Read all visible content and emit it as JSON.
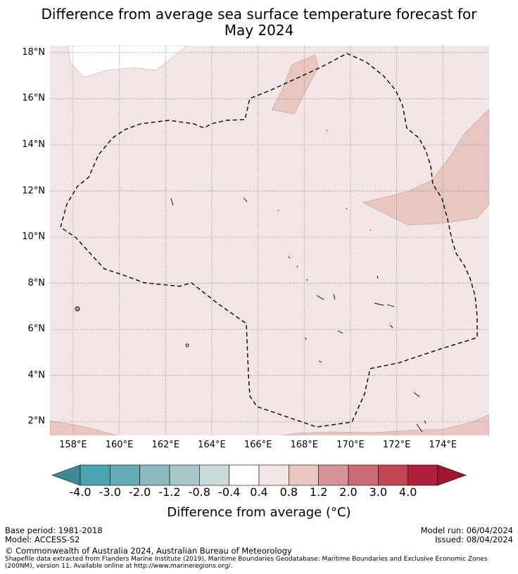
{
  "title_line1": "Difference from average sea surface temperature forecast for",
  "title_line2": "May 2024",
  "y_ticks": [
    "18°N",
    "16°N",
    "14°N",
    "12°N",
    "10°N",
    "8°N",
    "6°N",
    "4°N",
    "2°N"
  ],
  "x_ticks": [
    "158°E",
    "160°E",
    "162°E",
    "164°E",
    "166°E",
    "168°E",
    "170°E",
    "172°E",
    "174°E"
  ],
  "colorbar": {
    "labels": [
      "-4.0",
      "-3.0",
      "-2.0",
      "-1.2",
      "-0.8",
      "-0.4",
      "0.4",
      "0.8",
      "1.2",
      "2.0",
      "3.0",
      "4.0"
    ],
    "colors": [
      "#3d8a96",
      "#4aa3b1",
      "#67abb9",
      "#8bb8c1",
      "#a8c6ca",
      "#cbdbdc",
      "#ffffff",
      "#f4e6e4",
      "#e8c6c2",
      "#d8929a",
      "#cc6a74",
      "#c04656",
      "#b0203c",
      "#a4162f"
    ],
    "title": "Difference from average (°C)"
  },
  "map": {
    "lon_range": [
      157,
      176
    ],
    "lat_range": [
      1.4,
      18.3
    ],
    "background_color": "#f4e6e4",
    "warmer_color": "#e8c6c2"
  },
  "footer": {
    "base_period": "Base period: 1981-2018",
    "model": "Model: ACCESS-S2",
    "model_run": "Model run: 06/04/2024",
    "issued": "Issued: 08/04/2024",
    "copyright": "© Commonwealth of Australia 2024, Australian Bureau of Meteorology",
    "source_line1": "Shapefile data extracted from Flanders Marine Institute (2019), Maritime Boundaries Geodatabase: Maritime Boundaries and Exclusive Economic Zones",
    "source_line2": "(200NM), version 11. Available online at http://www.marineregions.org/."
  }
}
